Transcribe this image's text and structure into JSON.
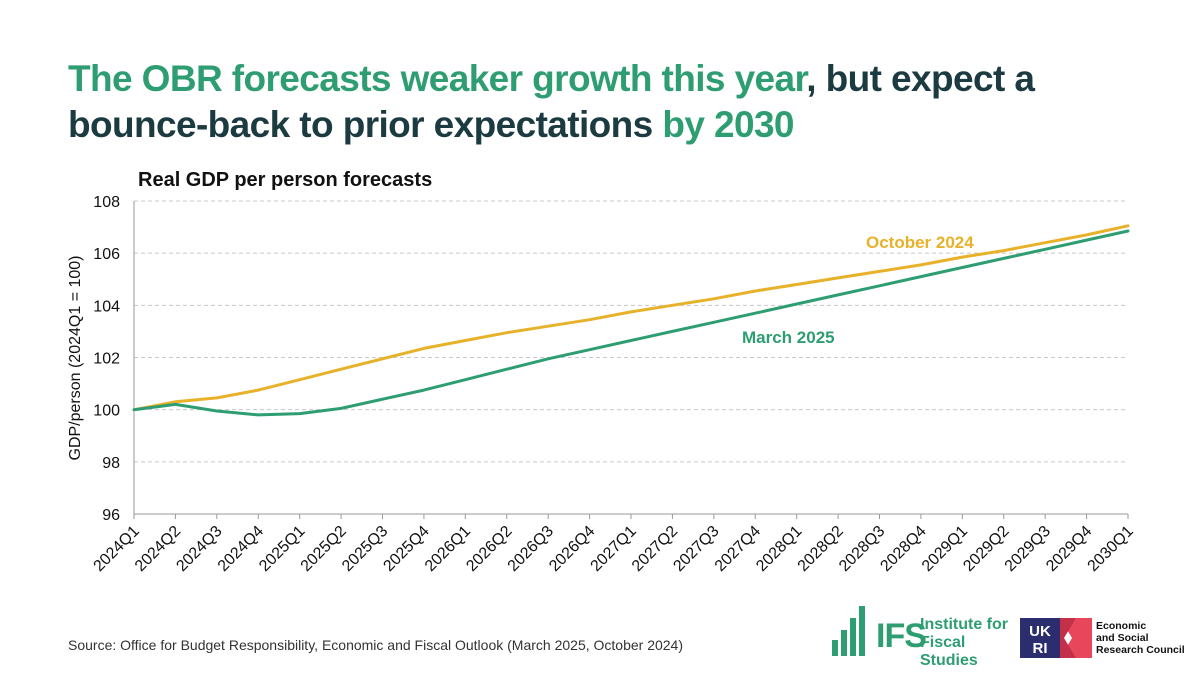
{
  "headline": {
    "part1": "The OBR forecasts weaker growth this year",
    "part2": ", but expect a bounce-back to prior expectations ",
    "part3": "by 2030"
  },
  "colors": {
    "headline_dark": "#1c3b41",
    "accent_green": "#2e9e72",
    "october_2024": "#e8b12a",
    "march_2025": "#2e9e72",
    "grid": "#c8c8c8"
  },
  "chart_data": {
    "type": "line",
    "title": "Real GDP per person forecasts",
    "xlabel": "",
    "ylabel": "GDP/person (2024Q1 = 100)",
    "ylim": [
      96,
      108
    ],
    "yticks": [
      96,
      98,
      100,
      102,
      104,
      106,
      108
    ],
    "grid": "horizontal dashed",
    "legend": "inline labels",
    "categories": [
      "2024Q1",
      "2024Q2",
      "2024Q3",
      "2024Q4",
      "2025Q1",
      "2025Q2",
      "2025Q3",
      "2025Q4",
      "2026Q1",
      "2026Q2",
      "2026Q3",
      "2026Q4",
      "2027Q1",
      "2027Q2",
      "2027Q3",
      "2027Q4",
      "2028Q1",
      "2028Q2",
      "2028Q3",
      "2028Q4",
      "2029Q1",
      "2029Q2",
      "2029Q3",
      "2029Q4",
      "2030Q1"
    ],
    "series": [
      {
        "name": "October 2024",
        "color": "#e8b12a",
        "values": [
          100.0,
          100.3,
          100.45,
          100.75,
          101.15,
          101.55,
          101.95,
          102.35,
          102.65,
          102.95,
          103.2,
          103.45,
          103.75,
          104.0,
          104.25,
          104.55,
          104.8,
          105.05,
          105.3,
          105.55,
          105.85,
          106.1,
          106.4,
          106.7,
          107.05
        ]
      },
      {
        "name": "March 2025",
        "color": "#2e9e72",
        "values": [
          100.0,
          100.2,
          99.95,
          99.8,
          99.85,
          100.05,
          100.4,
          100.75,
          101.15,
          101.55,
          101.95,
          102.3,
          102.65,
          103.0,
          103.35,
          103.7,
          104.05,
          104.4,
          104.75,
          105.1,
          105.45,
          105.8,
          106.15,
          106.5,
          106.85
        ]
      }
    ]
  },
  "source": "Source: Office for Budget Responsibility, Economic and Fiscal Outlook (March 2025, October 2024)",
  "logos": {
    "ifs": {
      "acronym": "IFS",
      "name_line1": "Institute for",
      "name_line2": "Fiscal Studies"
    },
    "ukri": {
      "mark_line1": "UK",
      "mark_line2": "RI",
      "text_line1": "Economic",
      "text_line2": "and Social",
      "text_line3": "Research Council"
    }
  }
}
